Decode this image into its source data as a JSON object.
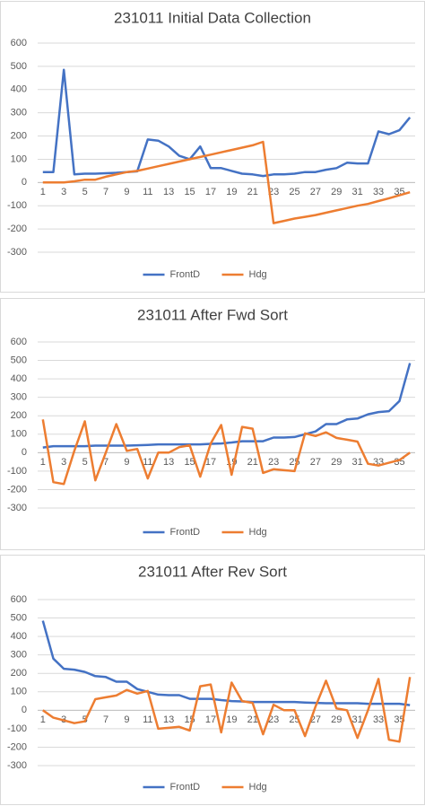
{
  "chart_data": [
    {
      "type": "line",
      "title": "231011 Initial Data Collection",
      "categories": [
        1,
        null,
        3,
        null,
        5,
        null,
        7,
        null,
        9,
        null,
        11,
        null,
        13,
        null,
        15,
        null,
        17,
        null,
        19,
        null,
        21,
        null,
        23,
        null,
        25,
        null,
        27,
        null,
        29,
        null,
        31,
        null,
        33,
        null,
        35,
        null
      ],
      "series": [
        {
          "name": "FrontD",
          "color": "#4472c4",
          "values": [
            45,
            45,
            485,
            35,
            38,
            38,
            40,
            42,
            45,
            48,
            185,
            180,
            155,
            115,
            100,
            155,
            62,
            62,
            50,
            38,
            35,
            28,
            35,
            35,
            38,
            45,
            45,
            55,
            62,
            85,
            82,
            82,
            220,
            208,
            225,
            280
          ]
        },
        {
          "name": "Hdg",
          "color": "#ed7d31",
          "values": [
            0,
            0,
            0,
            5,
            12,
            12,
            25,
            35,
            45,
            50,
            60,
            70,
            80,
            90,
            100,
            110,
            120,
            130,
            140,
            150,
            160,
            175,
            -175,
            -165,
            -155,
            -148,
            -140,
            -130,
            -120,
            -110,
            -100,
            -92,
            -80,
            -68,
            -55,
            -42
          ]
        }
      ],
      "ylim": [
        -300,
        600
      ],
      "yticks": [
        -300,
        -200,
        -100,
        0,
        100,
        200,
        300,
        400,
        500,
        600
      ],
      "grid": true,
      "legend": "bottom"
    },
    {
      "type": "line",
      "title": "231011 After Fwd Sort",
      "categories": [
        1,
        null,
        3,
        null,
        5,
        null,
        7,
        null,
        9,
        null,
        11,
        null,
        13,
        null,
        15,
        null,
        17,
        null,
        19,
        null,
        21,
        null,
        23,
        null,
        25,
        null,
        27,
        null,
        29,
        null,
        31,
        null,
        33,
        null,
        35,
        null
      ],
      "series": [
        {
          "name": "FrontD",
          "color": "#4472c4",
          "values": [
            28,
            35,
            35,
            35,
            35,
            38,
            38,
            38,
            38,
            40,
            42,
            45,
            45,
            45,
            45,
            45,
            48,
            50,
            55,
            62,
            62,
            62,
            82,
            82,
            85,
            100,
            115,
            155,
            155,
            180,
            185,
            208,
            220,
            225,
            280,
            485
          ]
        },
        {
          "name": "Hdg",
          "color": "#ed7d31",
          "values": [
            180,
            -160,
            -170,
            10,
            170,
            -150,
            0,
            155,
            10,
            20,
            -140,
            0,
            0,
            30,
            40,
            -130,
            50,
            150,
            -120,
            140,
            130,
            -110,
            -90,
            -95,
            -100,
            105,
            90,
            110,
            80,
            70,
            60,
            -60,
            -70,
            -55,
            -40,
            0
          ]
        }
      ],
      "ylim": [
        -300,
        600
      ],
      "yticks": [
        -300,
        -200,
        -100,
        0,
        100,
        200,
        300,
        400,
        500,
        600
      ],
      "grid": true,
      "legend": "bottom"
    },
    {
      "type": "line",
      "title": "231011 After Rev Sort",
      "categories": [
        1,
        null,
        3,
        null,
        5,
        null,
        7,
        null,
        9,
        null,
        11,
        null,
        13,
        null,
        15,
        null,
        17,
        null,
        19,
        null,
        21,
        null,
        23,
        null,
        25,
        null,
        27,
        null,
        29,
        null,
        31,
        null,
        33,
        null,
        35,
        null
      ],
      "series": [
        {
          "name": "FrontD",
          "color": "#4472c4",
          "values": [
            485,
            280,
            225,
            220,
            208,
            185,
            180,
            155,
            155,
            115,
            100,
            85,
            82,
            82,
            62,
            62,
            62,
            55,
            50,
            48,
            45,
            45,
            45,
            45,
            45,
            42,
            40,
            38,
            38,
            38,
            38,
            35,
            35,
            35,
            35,
            28
          ]
        },
        {
          "name": "Hdg",
          "color": "#ed7d31",
          "values": [
            0,
            -40,
            -55,
            -70,
            -60,
            60,
            70,
            80,
            110,
            90,
            105,
            -100,
            -95,
            -90,
            -110,
            130,
            140,
            -120,
            150,
            50,
            40,
            -130,
            30,
            0,
            0,
            -140,
            20,
            160,
            10,
            0,
            -150,
            0,
            170,
            -160,
            -170,
            180
          ]
        }
      ],
      "ylim": [
        -300,
        600
      ],
      "yticks": [
        -300,
        -200,
        -100,
        0,
        100,
        200,
        300,
        400,
        500,
        600
      ],
      "grid": true,
      "legend": "bottom"
    }
  ]
}
